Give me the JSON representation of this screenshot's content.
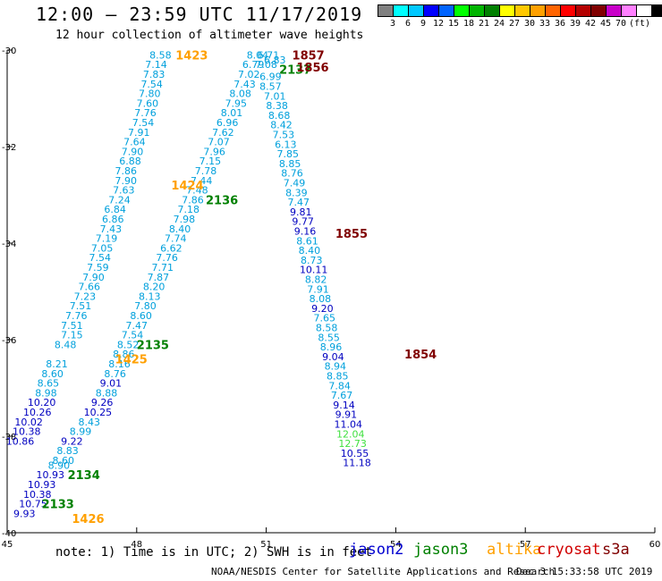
{
  "title": "12:00 – 23:59 UTC 11/17/2019",
  "subtitle": "12 hour collection of altimeter wave heights",
  "colorbar": {
    "colors": [
      "#808080",
      "#00ffff",
      "#00c8ff",
      "#0000ff",
      "#0064ff",
      "#00ff00",
      "#00b400",
      "#008000",
      "#ffff00",
      "#ffc800",
      "#ffa000",
      "#ff6400",
      "#ff0000",
      "#b40000",
      "#800000",
      "#c800c8",
      "#ff80ff",
      "#ffffff",
      "#000000"
    ],
    "labels": [
      "3",
      "6",
      "9",
      "12",
      "15",
      "18",
      "21",
      "24",
      "27",
      "30",
      "33",
      "36",
      "39",
      "42",
      "45",
      "70",
      "(ft)"
    ]
  },
  "note": "note:  1) Time is in UTC; 2) SWH is in feet",
  "credit": "NOAA/NESDIS Center for Satellite Applications and Research",
  "date_stamp": "Dec  3 15:33:58 UTC 2019",
  "satellites": [
    {
      "name": "jason2",
      "color": "#0000d0"
    },
    {
      "name": "jason3",
      "color": "#008000"
    },
    {
      "name": "altika",
      "color": "#ffa000"
    },
    {
      "name": "cryosat",
      "color": "#d00000"
    },
    {
      "name": "s3a",
      "color": "#800000"
    }
  ],
  "chart_data": {
    "type": "scatter",
    "xlim": [
      45,
      60
    ],
    "ylim": [
      -40,
      -30
    ],
    "xticks": [
      "45",
      "48",
      "51",
      "54",
      "57",
      "60"
    ],
    "yticks": [
      "-30",
      "-32",
      "-34",
      "-36",
      "-38",
      "-40"
    ],
    "grid": false,
    "tracks": [
      {
        "label": "1423",
        "color": "#ffa000",
        "lon": 48.9,
        "lat": -30.1,
        "points": [
          {
            "lon": 48.55,
            "lat": -30.1,
            "v": "8.58"
          },
          {
            "lon": 48.45,
            "lat": -30.3,
            "v": "7.14"
          },
          {
            "lon": 48.4,
            "lat": -30.5,
            "v": "7.83"
          },
          {
            "lon": 48.35,
            "lat": -30.7,
            "v": "7.54"
          },
          {
            "lon": 48.3,
            "lat": -30.9,
            "v": "7.80"
          },
          {
            "lon": 48.25,
            "lat": -31.1,
            "v": "7.60"
          },
          {
            "lon": 48.2,
            "lat": -31.3,
            "v": "7.76"
          },
          {
            "lon": 48.15,
            "lat": -31.5,
            "v": "7.54"
          },
          {
            "lon": 48.05,
            "lat": -31.7,
            "v": "7.91"
          },
          {
            "lon": 47.95,
            "lat": -31.9,
            "v": "7.64"
          },
          {
            "lon": 47.9,
            "lat": -32.1,
            "v": "7.90"
          },
          {
            "lon": 47.85,
            "lat": -32.3,
            "v": "6.88"
          },
          {
            "lon": 47.75,
            "lat": -32.5,
            "v": "7.86"
          },
          {
            "lon": 47.75,
            "lat": -32.7,
            "v": "7.90"
          },
          {
            "lon": 47.7,
            "lat": -32.9,
            "v": "7.63"
          },
          {
            "lon": 47.6,
            "lat": -33.1,
            "v": "7.24"
          },
          {
            "lon": 47.5,
            "lat": -33.3,
            "v": "6.84"
          },
          {
            "lon": 47.45,
            "lat": -33.5,
            "v": "6.86"
          },
          {
            "lon": 47.4,
            "lat": -33.7,
            "v": "7.43"
          },
          {
            "lon": 47.3,
            "lat": -33.9,
            "v": "7.19"
          },
          {
            "lon": 47.2,
            "lat": -34.1,
            "v": "7.05"
          },
          {
            "lon": 47.15,
            "lat": -34.3,
            "v": "7.54"
          },
          {
            "lon": 47.1,
            "lat": -34.5,
            "v": "7.59"
          },
          {
            "lon": 47.0,
            "lat": -34.7,
            "v": "7.90"
          },
          {
            "lon": 46.9,
            "lat": -34.9,
            "v": "7.66"
          },
          {
            "lon": 46.8,
            "lat": -35.1,
            "v": "7.23"
          },
          {
            "lon": 46.7,
            "lat": -35.3,
            "v": "7.51"
          },
          {
            "lon": 46.6,
            "lat": -35.5,
            "v": "7.76"
          },
          {
            "lon": 46.5,
            "lat": -35.7,
            "v": "7.51"
          },
          {
            "lon": 46.5,
            "lat": -35.9,
            "v": "7.15"
          },
          {
            "lon": 46.35,
            "lat": -36.1,
            "v": "8.48"
          },
          {
            "lon": 46.15,
            "lat": -36.5,
            "v": "8.21"
          },
          {
            "lon": 46.05,
            "lat": -36.7,
            "v": "8.60"
          },
          {
            "lon": 45.95,
            "lat": -36.9,
            "v": "8.65"
          },
          {
            "lon": 45.9,
            "lat": -37.1,
            "v": "8.98"
          },
          {
            "lon": 45.8,
            "lat": -37.3,
            "v": "10.20"
          },
          {
            "lon": 45.7,
            "lat": -37.5,
            "v": "10.26"
          },
          {
            "lon": 45.5,
            "lat": -37.7,
            "v": "10.02"
          },
          {
            "lon": 45.45,
            "lat": -37.9,
            "v": "10.38"
          },
          {
            "lon": 45.3,
            "lat": -38.1,
            "v": "10.86"
          }
        ]
      },
      {
        "label": "1424",
        "color": "#ffa000",
        "lon": 48.8,
        "lat": -32.8,
        "points": [
          {
            "lon": 50.8,
            "lat": -30.1,
            "v": "8.04"
          },
          {
            "lon": 50.7,
            "lat": -30.3,
            "v": "6.79"
          },
          {
            "lon": 50.6,
            "lat": -30.5,
            "v": "7.02"
          },
          {
            "lon": 50.5,
            "lat": -30.7,
            "v": "7.43"
          },
          {
            "lon": 50.4,
            "lat": -30.9,
            "v": "8.08"
          },
          {
            "lon": 50.3,
            "lat": -31.1,
            "v": "7.95"
          },
          {
            "lon": 50.2,
            "lat": -31.3,
            "v": "8.01"
          },
          {
            "lon": 50.1,
            "lat": -31.5,
            "v": "6.96"
          },
          {
            "lon": 50.0,
            "lat": -31.7,
            "v": "7.62"
          },
          {
            "lon": 49.9,
            "lat": -31.9,
            "v": "7.07"
          },
          {
            "lon": 49.8,
            "lat": -32.1,
            "v": "7.96"
          },
          {
            "lon": 49.7,
            "lat": -32.3,
            "v": "7.15"
          },
          {
            "lon": 49.6,
            "lat": -32.5,
            "v": "7.78"
          },
          {
            "lon": 49.5,
            "lat": -32.7,
            "v": "7.44"
          },
          {
            "lon": 49.4,
            "lat": -32.9,
            "v": "7.48"
          },
          {
            "lon": 49.3,
            "lat": -33.1,
            "v": "7.86"
          },
          {
            "lon": 49.2,
            "lat": -33.3,
            "v": "7.18"
          },
          {
            "lon": 49.1,
            "lat": -33.5,
            "v": "7.98"
          },
          {
            "lon": 49.0,
            "lat": -33.7,
            "v": "8.40"
          },
          {
            "lon": 48.9,
            "lat": -33.9,
            "v": "7.74"
          },
          {
            "lon": 48.8,
            "lat": -34.1,
            "v": "6.62"
          },
          {
            "lon": 48.7,
            "lat": -34.3,
            "v": "7.76"
          },
          {
            "lon": 48.6,
            "lat": -34.5,
            "v": "7.71"
          },
          {
            "lon": 48.5,
            "lat": -34.7,
            "v": "7.87"
          },
          {
            "lon": 48.4,
            "lat": -34.9,
            "v": "8.20"
          },
          {
            "lon": 48.3,
            "lat": -35.1,
            "v": "8.13"
          },
          {
            "lon": 48.2,
            "lat": -35.3,
            "v": "7.80"
          },
          {
            "lon": 48.1,
            "lat": -35.5,
            "v": "8.60"
          },
          {
            "lon": 48.0,
            "lat": -35.7,
            "v": "7.47"
          },
          {
            "lon": 47.9,
            "lat": -35.9,
            "v": "7.54"
          },
          {
            "lon": 47.8,
            "lat": -36.1,
            "v": "8.52"
          },
          {
            "lon": 47.7,
            "lat": -36.3,
            "v": "8.86"
          },
          {
            "lon": 47.6,
            "lat": -36.5,
            "v": "8.16"
          },
          {
            "lon": 47.5,
            "lat": -36.7,
            "v": "8.76"
          }
        ]
      },
      {
        "label": "1425",
        "color": "#ffa000",
        "lon": 47.5,
        "lat": -36.4,
        "points": []
      },
      {
        "label": "1426",
        "color": "#ffa000",
        "lon": 46.5,
        "lat": -39.7,
        "points": []
      },
      {
        "label": "2137",
        "color": "#008000",
        "lon": 51.3,
        "lat": -30.4,
        "points": [
          {
            "lon": 51.05,
            "lat": -30.1,
            "v": "6.71"
          },
          {
            "lon": 51.0,
            "lat": -30.3,
            "v": "7.08"
          },
          {
            "lon": 51.1,
            "lat": -30.55,
            "v": "6.99"
          },
          {
            "lon": 51.1,
            "lat": -30.75,
            "v": "8.57"
          }
        ]
      },
      {
        "label": "2136",
        "color": "#008000",
        "lon": 49.6,
        "lat": -33.1,
        "points": []
      },
      {
        "label": "2135",
        "color": "#008000",
        "lon": 48.0,
        "lat": -36.1,
        "points": [
          {
            "lon": 47.4,
            "lat": -36.9,
            "v": "9.01"
          },
          {
            "lon": 47.3,
            "lat": -37.1,
            "v": "8.88"
          },
          {
            "lon": 47.2,
            "lat": -37.3,
            "v": "9.26"
          },
          {
            "lon": 47.1,
            "lat": -37.5,
            "v": "10.25"
          },
          {
            "lon": 46.9,
            "lat": -37.7,
            "v": "8.43"
          },
          {
            "lon": 46.7,
            "lat": -37.9,
            "v": "8.99"
          },
          {
            "lon": 46.5,
            "lat": -38.1,
            "v": "9.22"
          },
          {
            "lon": 46.4,
            "lat": -38.3,
            "v": "8.83"
          },
          {
            "lon": 46.3,
            "lat": -38.5,
            "v": "8.60"
          }
        ]
      },
      {
        "label": "2134",
        "color": "#008000",
        "lon": 46.4,
        "lat": -38.8,
        "points": [
          {
            "lon": 46.2,
            "lat": -38.6,
            "v": "8.90"
          },
          {
            "lon": 46.0,
            "lat": -38.8,
            "v": "10.93"
          },
          {
            "lon": 45.8,
            "lat": -39.0,
            "v": "10.93"
          },
          {
            "lon": 45.7,
            "lat": -39.2,
            "v": "10.38"
          },
          {
            "lon": 45.6,
            "lat": -39.4,
            "v": "10.75"
          },
          {
            "lon": 45.4,
            "lat": -39.6,
            "v": "9.93"
          }
        ]
      },
      {
        "label": "2133",
        "color": "#008000",
        "lon": 45.8,
        "lat": -39.4,
        "points": []
      },
      {
        "label": "1857",
        "color": "#800000",
        "lon": 51.6,
        "lat": -30.1,
        "points": [
          {
            "lon": 51.2,
            "lat": -30.2,
            "v": "6.83"
          }
        ]
      },
      {
        "label": "1856",
        "color": "#800000",
        "lon": 51.7,
        "lat": -30.35,
        "points": [
          {
            "lon": 51.2,
            "lat": -30.95,
            "v": "7.01"
          },
          {
            "lon": 51.25,
            "lat": -31.15,
            "v": "8.38"
          },
          {
            "lon": 51.3,
            "lat": -31.35,
            "v": "8.68"
          },
          {
            "lon": 51.35,
            "lat": -31.55,
            "v": "8.42"
          },
          {
            "lon": 51.4,
            "lat": -31.75,
            "v": "7.53"
          },
          {
            "lon": 51.45,
            "lat": -31.95,
            "v": "6.13"
          },
          {
            "lon": 51.5,
            "lat": -32.15,
            "v": "7.85"
          },
          {
            "lon": 51.55,
            "lat": -32.35,
            "v": "8.85"
          },
          {
            "lon": 51.6,
            "lat": -32.55,
            "v": "8.76"
          },
          {
            "lon": 51.65,
            "lat": -32.75,
            "v": "7.49"
          },
          {
            "lon": 51.7,
            "lat": -32.95,
            "v": "8.39"
          },
          {
            "lon": 51.75,
            "lat": -33.15,
            "v": "7.47"
          }
        ]
      },
      {
        "label": "1855",
        "color": "#800000",
        "lon": 52.6,
        "lat": -33.8,
        "points": [
          {
            "lon": 51.8,
            "lat": -33.35,
            "v": "9.81"
          },
          {
            "lon": 51.85,
            "lat": -33.55,
            "v": "9.77"
          },
          {
            "lon": 51.9,
            "lat": -33.75,
            "v": "9.16"
          },
          {
            "lon": 51.95,
            "lat": -33.95,
            "v": "8.61"
          },
          {
            "lon": 52.0,
            "lat": -34.15,
            "v": "8.40"
          },
          {
            "lon": 52.05,
            "lat": -34.35,
            "v": "8.73"
          },
          {
            "lon": 52.1,
            "lat": -34.55,
            "v": "10.11"
          },
          {
            "lon": 52.15,
            "lat": -34.75,
            "v": "8.82"
          },
          {
            "lon": 52.2,
            "lat": -34.95,
            "v": "7.91"
          },
          {
            "lon": 52.25,
            "lat": -35.15,
            "v": "8.08"
          },
          {
            "lon": 52.3,
            "lat": -35.35,
            "v": "9.20"
          },
          {
            "lon": 52.35,
            "lat": -35.55,
            "v": "7.65"
          },
          {
            "lon": 52.4,
            "lat": -35.75,
            "v": "8.58"
          },
          {
            "lon": 52.45,
            "lat": -35.95,
            "v": "8.55"
          },
          {
            "lon": 52.5,
            "lat": -36.15,
            "v": "8.96"
          }
        ]
      },
      {
        "label": "1854",
        "color": "#800000",
        "lon": 54.2,
        "lat": -36.3,
        "points": [
          {
            "lon": 52.55,
            "lat": -36.35,
            "v": "9.04"
          },
          {
            "lon": 52.6,
            "lat": -36.55,
            "v": "8.94"
          },
          {
            "lon": 52.65,
            "lat": -36.75,
            "v": "8.85"
          },
          {
            "lon": 52.7,
            "lat": -36.95,
            "v": "7.84"
          },
          {
            "lon": 52.75,
            "lat": -37.15,
            "v": "7.67"
          },
          {
            "lon": 52.8,
            "lat": -37.35,
            "v": "9.14"
          },
          {
            "lon": 52.85,
            "lat": -37.55,
            "v": "9.91"
          },
          {
            "lon": 52.9,
            "lat": -37.75,
            "v": "11.04"
          },
          {
            "lon": 52.95,
            "lat": -37.95,
            "v": "12.04"
          },
          {
            "lon": 53.0,
            "lat": -38.15,
            "v": "12.73"
          },
          {
            "lon": 53.05,
            "lat": -38.35,
            "v": "10.55"
          },
          {
            "lon": 53.1,
            "lat": -38.55,
            "v": "11.18"
          }
        ]
      }
    ]
  }
}
